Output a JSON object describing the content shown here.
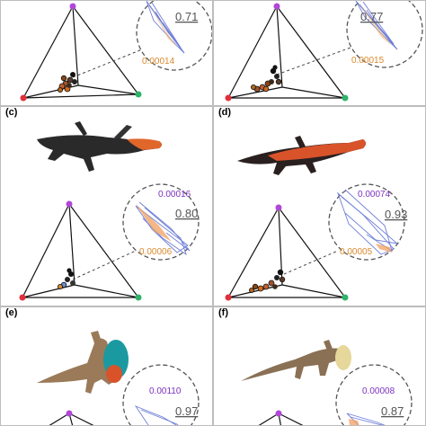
{
  "colors": {
    "purple": "#7b2fbf",
    "orange": "#d98a2e",
    "vertex_top": "#b146d8",
    "vertex_left": "#e0303a",
    "vertex_right": "#2fb36a",
    "hull": "#6f7fd8"
  },
  "panels": [
    {
      "id": "a",
      "label": "",
      "overlap": "0.71",
      "purple_value": "",
      "orange_value": "0.00014",
      "lizard": "none",
      "lizard_icon": "none"
    },
    {
      "id": "b",
      "label": "",
      "overlap": "0.77",
      "purple_value": "",
      "orange_value": "0.00015",
      "lizard": "none",
      "lizard_icon": "none"
    },
    {
      "id": "c",
      "label": "(c)",
      "overlap": "0.80",
      "purple_value": "0.00016",
      "orange_value": "0.00006",
      "lizard": "agama-orange-head",
      "lizard_icon": "lizard-icon"
    },
    {
      "id": "d",
      "label": "(d)",
      "overlap": "0.93",
      "purple_value": "0.00074",
      "orange_value": "0.00005",
      "lizard": "agama-orange-body",
      "lizard_icon": "lizard-icon"
    },
    {
      "id": "e",
      "label": "(e)",
      "overlap": "0.97",
      "purple_value": "0.00110",
      "orange_value": "",
      "lizard": "anole-blue-dewlap",
      "lizard_icon": "lizard-icon"
    },
    {
      "id": "f",
      "label": "(f)",
      "overlap": "0.87",
      "purple_value": "0.00008",
      "orange_value": "",
      "lizard": "anole-yellow-dewlap",
      "lizard_icon": "lizard-icon"
    }
  ]
}
